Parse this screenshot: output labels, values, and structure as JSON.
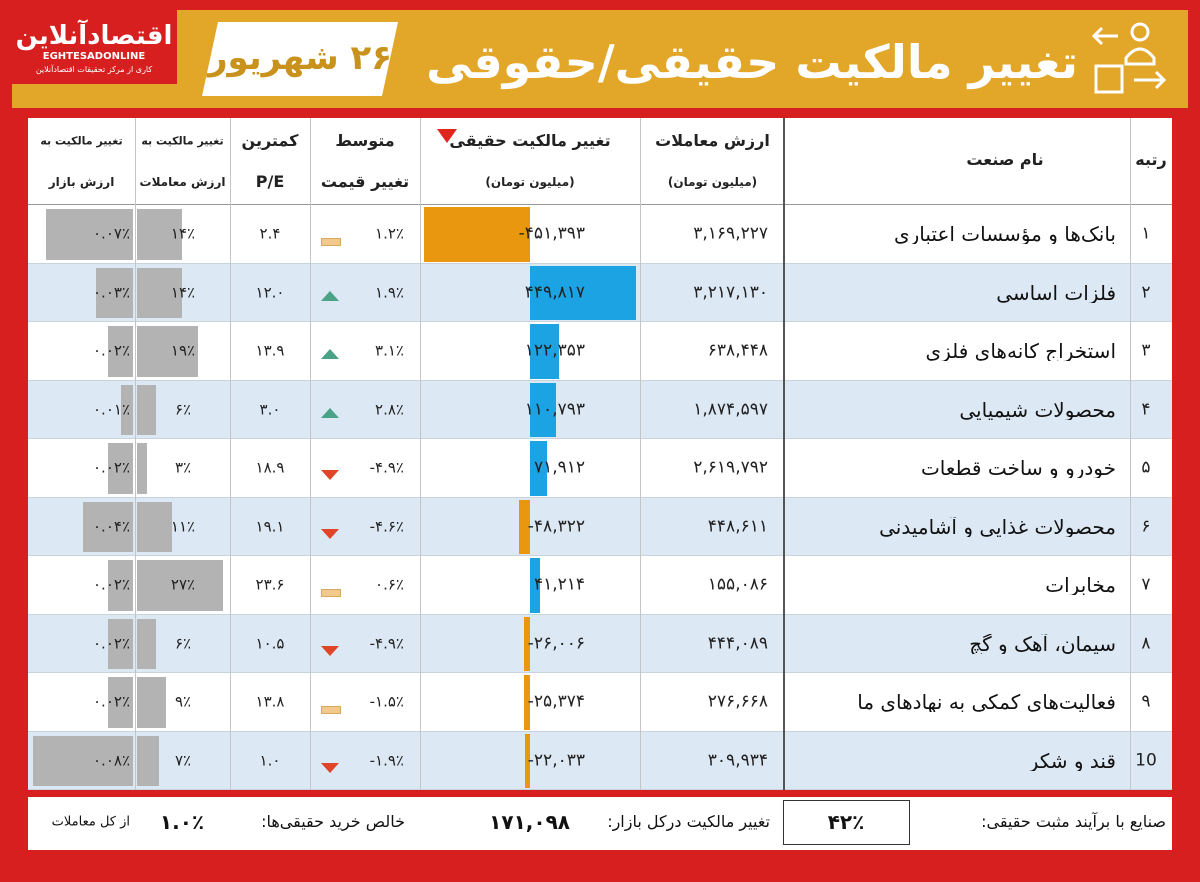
{
  "header": {
    "title": "تغییر مالکیت حقیقی/حقوقی",
    "date": "۲۶ شهریور",
    "logo": {
      "name": "اقتصادآنلاین",
      "latin": "EGHTESADONLINE",
      "tagline": "کاری از مرکز تحقیقات اقتصادآنلاین"
    }
  },
  "table": {
    "columns": {
      "rank": "رتبه",
      "industry": "نام صنعت",
      "trade_value": [
        "ارزش معاملات",
        "(میلیون تومان)"
      ],
      "ownership_change": [
        "تغییر مالکیت حقیقی",
        "(میلیون تومان)"
      ],
      "avg_price_change": [
        "متوسط",
        "تغییر قیمت"
      ],
      "min_pe": [
        "کمترین",
        "P/E"
      ],
      "change_to_trade": [
        "تغییر مالکیت به",
        "ارزش معاملات"
      ],
      "change_to_market": [
        "تغییر مالکیت به",
        "ارزش بازار"
      ]
    },
    "rows": [
      {
        "rank": "۱",
        "industry": "بانک‌ها و مؤسسات اعتباری",
        "trade_value": "۳,۱۶۹,۲۲۷",
        "ownership_change": "-۴۵۱,۳۹۳",
        "avg_price_change": "۱.۲٪",
        "trend": "flat",
        "min_pe": "۲.۴",
        "change_to_trade": "۱۴٪",
        "change_to_market": "۰.۰۷٪"
      },
      {
        "rank": "۲",
        "industry": "فلزات اساسی",
        "trade_value": "۳,۲۱۷,۱۳۰",
        "ownership_change": "۴۴۹,۸۱۷",
        "avg_price_change": "۱.۹٪",
        "trend": "up",
        "min_pe": "۱۲.۰",
        "change_to_trade": "۱۴٪",
        "change_to_market": "۰.۰۳٪"
      },
      {
        "rank": "۳",
        "industry": "استخراج کانه‌های فلزی",
        "trade_value": "۶۳۸,۴۴۸",
        "ownership_change": "۱۲۲,۳۵۳",
        "avg_price_change": "۳.۱٪",
        "trend": "up",
        "min_pe": "۱۳.۹",
        "change_to_trade": "۱۹٪",
        "change_to_market": "۰.۰۲٪"
      },
      {
        "rank": "۴",
        "industry": "محصولات شیمیایی",
        "trade_value": "۱,۸۷۴,۵۹۷",
        "ownership_change": "۱۱۰,۷۹۳",
        "avg_price_change": "۲.۸٪",
        "trend": "up",
        "min_pe": "۳.۰",
        "change_to_trade": "۶٪",
        "change_to_market": "۰.۰۱٪"
      },
      {
        "rank": "۵",
        "industry": "خودرو و ساخت قطعات",
        "trade_value": "۲,۶۱۹,۷۹۲",
        "ownership_change": "۷۱,۹۱۲",
        "avg_price_change": "-۴.۹٪",
        "trend": "down",
        "min_pe": "۱۸.۹",
        "change_to_trade": "۳٪",
        "change_to_market": "۰.۰۲٪"
      },
      {
        "rank": "۶",
        "industry": "محصولات غذایی و آشامیدنی",
        "trade_value": "۴۴۸,۶۱۱",
        "ownership_change": "-۴۸,۳۲۲",
        "avg_price_change": "-۴.۶٪",
        "trend": "down",
        "min_pe": "۱۹.۱",
        "change_to_trade": "۱۱٪",
        "change_to_market": "۰.۰۴٪"
      },
      {
        "rank": "۷",
        "industry": "مخابرات",
        "trade_value": "۱۵۵,۰۸۶",
        "ownership_change": "۴۱,۲۱۴",
        "avg_price_change": "۰.۶٪",
        "trend": "flat",
        "min_pe": "۲۳.۶",
        "change_to_trade": "۲۷٪",
        "change_to_market": "۰.۰۲٪"
      },
      {
        "rank": "۸",
        "industry": "سیمان، آهک و گچ",
        "trade_value": "۴۴۴,۰۸۹",
        "ownership_change": "-۲۶,۰۰۶",
        "avg_price_change": "-۴.۹٪",
        "trend": "down",
        "min_pe": "۱۰.۵",
        "change_to_trade": "۶٪",
        "change_to_market": "۰.۰۲٪"
      },
      {
        "rank": "۹",
        "industry": "فعالیت‌های کمکی به نهادهای ما",
        "trade_value": "۲۷۶,۶۶۸",
        "ownership_change": "-۲۵,۳۷۴",
        "avg_price_change": "-۱.۵٪",
        "trend": "flat",
        "min_pe": "۱۳.۸",
        "change_to_trade": "۹٪",
        "change_to_market": "۰.۰۲٪"
      },
      {
        "rank": "10",
        "industry": "قند و شکر",
        "trade_value": "۳۰۹,۹۳۴",
        "ownership_change": "-۲۲,۰۳۳",
        "avg_price_change": "-۱.۹٪",
        "trend": "down",
        "min_pe": "۱.۰",
        "change_to_trade": "۷٪",
        "change_to_market": "۰.۰۸٪"
      }
    ]
  },
  "footer": {
    "positive_label": "صنایع با برآیند مثبت حقیقی:",
    "positive_value": "۴۲٪",
    "market_label": "تغییر مالکیت درکل بازار:",
    "market_value": "۱۷۱,۰۹۸",
    "net_label": "خالص خرید حقیقی‌ها:",
    "net_value": "۱.۰٪",
    "net_suffix": "از کل معاملات"
  }
}
